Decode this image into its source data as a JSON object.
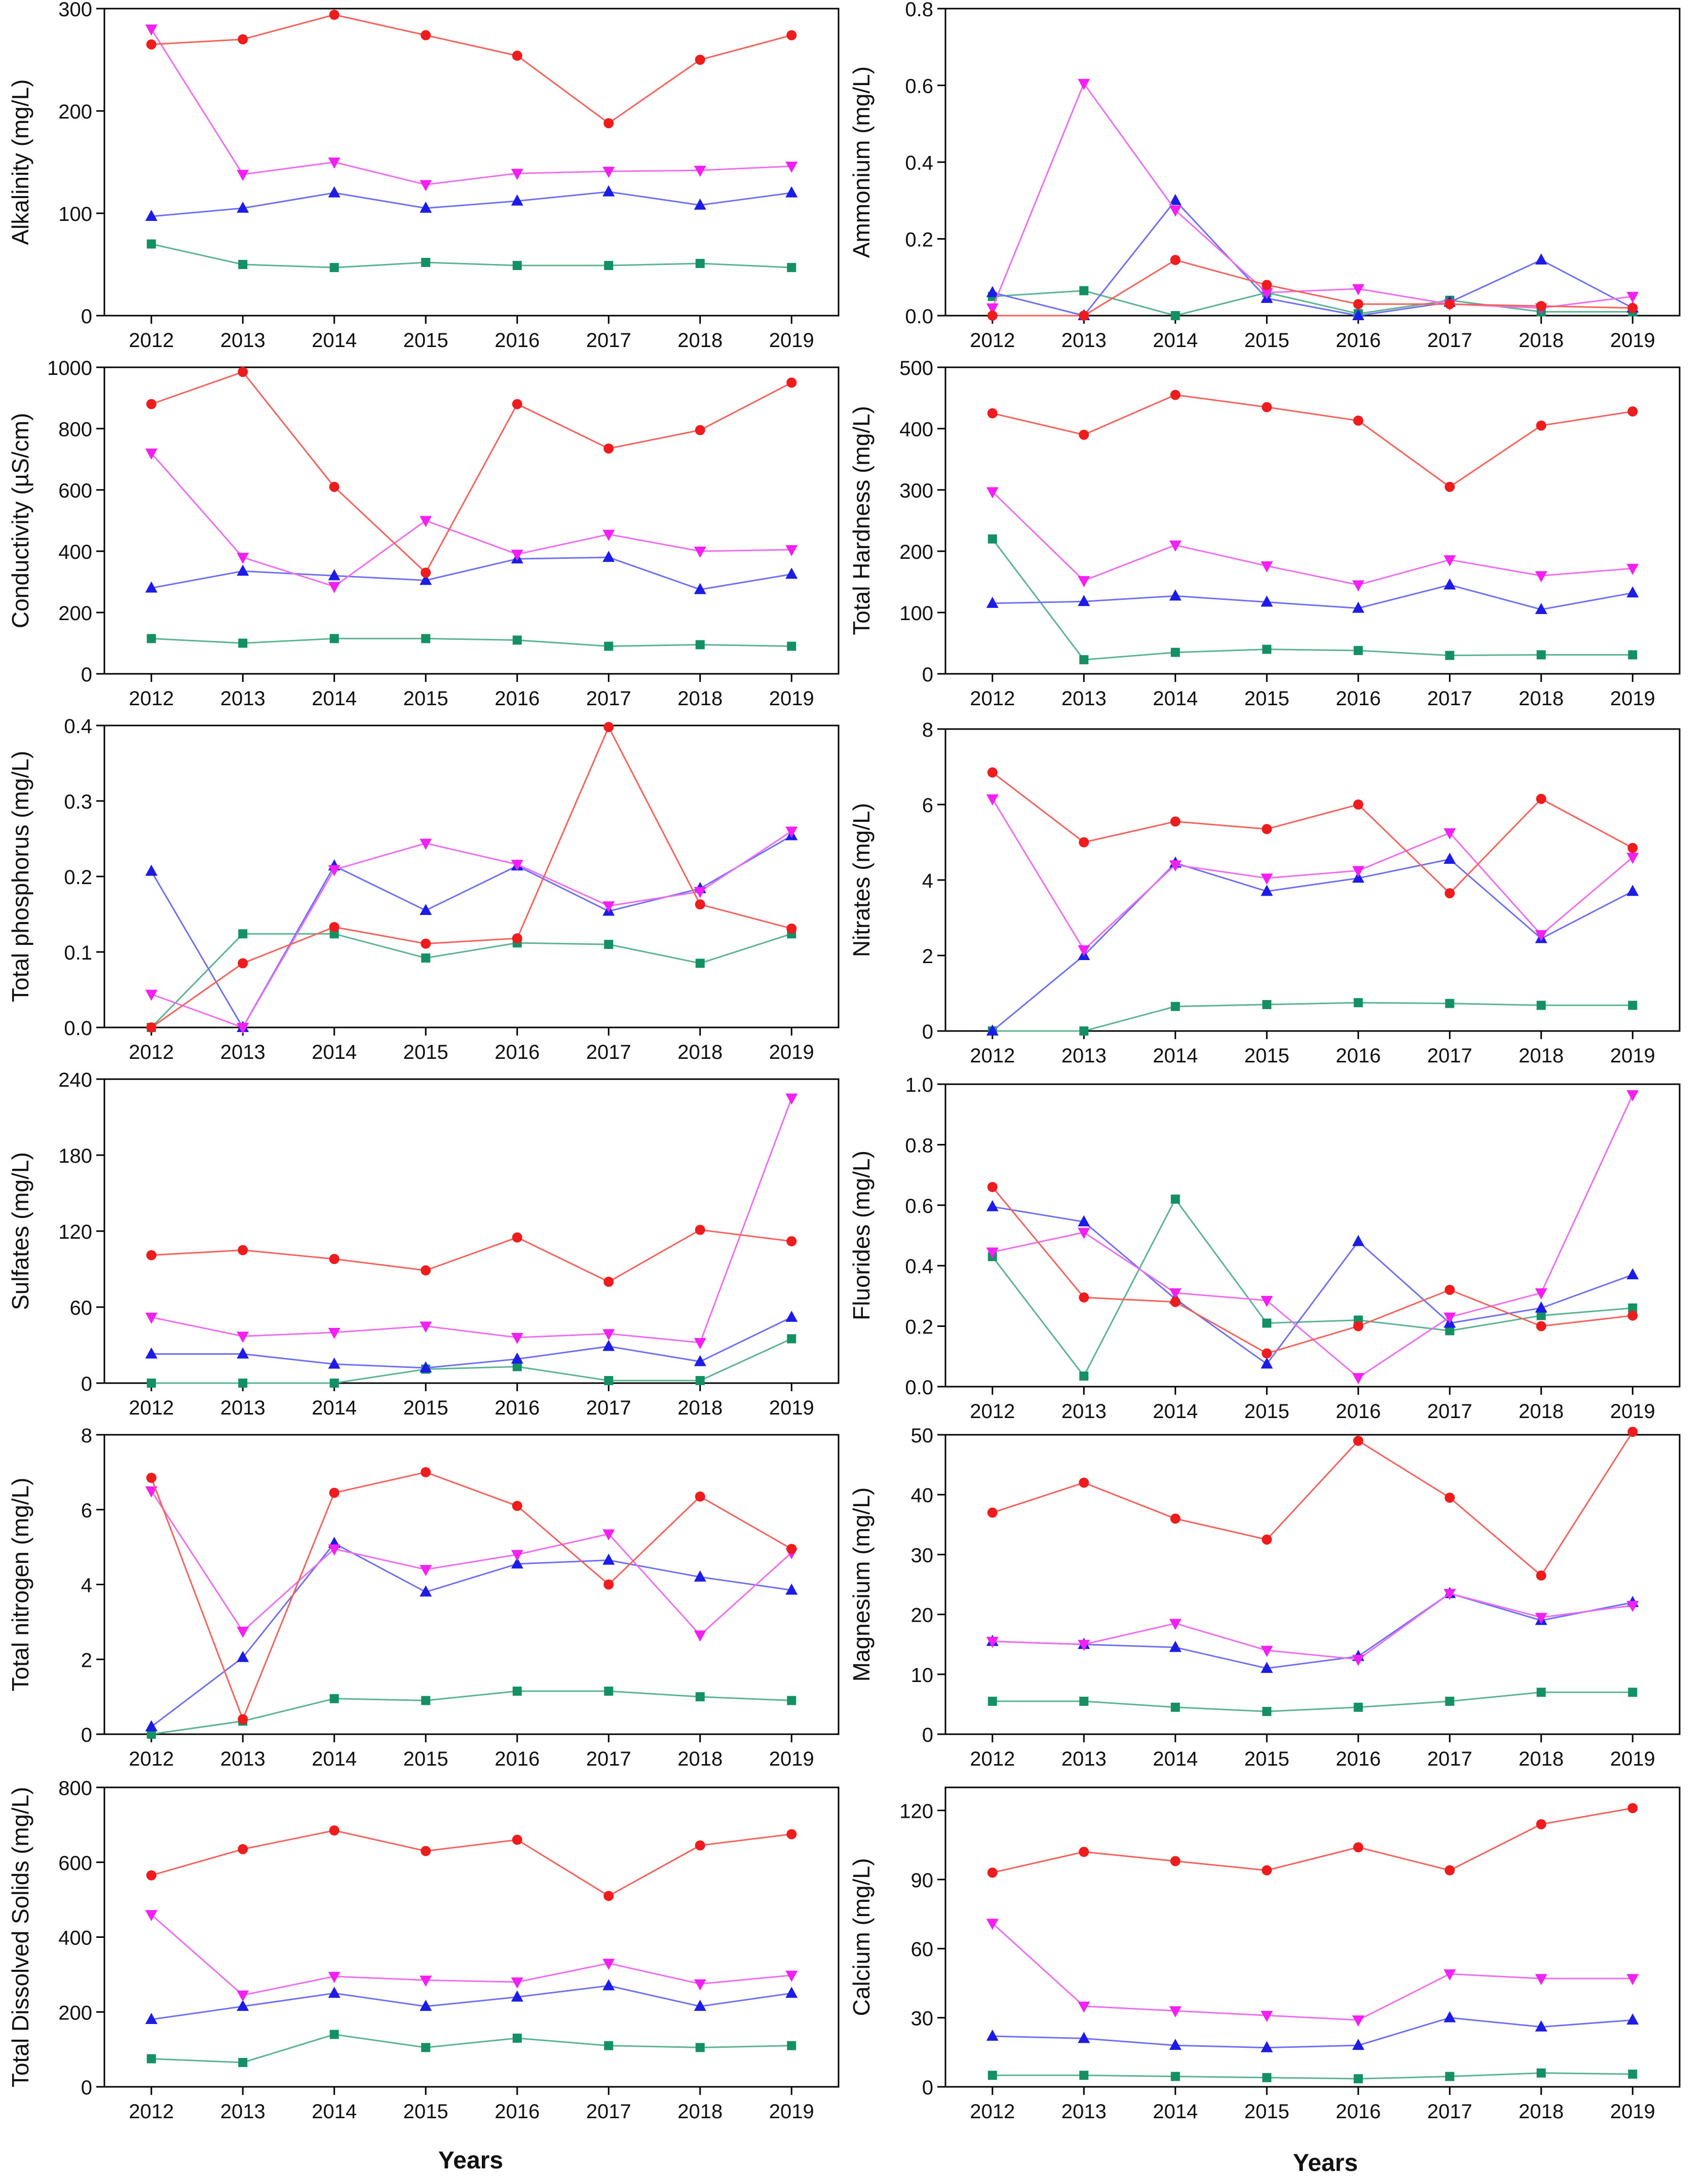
{
  "colors": {
    "red": "#f5625c",
    "redMarker": "#ee1c1c",
    "blue": "#6f6ff5",
    "blueMarker": "#1c1ce6",
    "magenta": "#ee6ef0",
    "magentaMarker": "#f31ff3",
    "teal": "#5bb391",
    "tealMarker": "#139164"
  },
  "x_axis_label": "Years",
  "chart_data": [
    {
      "type": "line",
      "ylabel": "Alkalinity (mg/L)",
      "ylim": [
        0,
        300
      ],
      "yticks": [
        0,
        100,
        200,
        300
      ],
      "categories": [
        "2012",
        "2013",
        "2014",
        "2015",
        "2016",
        "2017",
        "2018",
        "2019"
      ],
      "series": [
        {
          "marker": "circle",
          "color": "red",
          "values": [
            265,
            270,
            294,
            274,
            254,
            188,
            250,
            274
          ]
        },
        {
          "marker": "tri-down",
          "color": "magenta",
          "values": [
            280,
            138,
            150,
            128,
            139,
            141,
            142,
            146
          ]
        },
        {
          "marker": "tri-up",
          "color": "blue",
          "values": [
            97,
            105,
            120,
            105,
            112,
            121,
            108,
            120
          ]
        },
        {
          "marker": "square",
          "color": "teal",
          "values": [
            70,
            50,
            47,
            52,
            49,
            49,
            51,
            47
          ]
        }
      ]
    },
    {
      "type": "line",
      "ylabel": "Ammonium (mg/L)",
      "ylim": [
        0,
        0.8
      ],
      "yticks": [
        "0.0",
        "0.2",
        "0.4",
        "0.6",
        "0.8"
      ],
      "categories": [
        "2012",
        "2013",
        "2014",
        "2015",
        "2016",
        "2017",
        "2018",
        "2019"
      ],
      "series": [
        {
          "marker": "circle",
          "color": "red",
          "values": [
            0.0,
            0.0,
            0.145,
            0.08,
            0.03,
            0.03,
            0.025,
            0.02
          ]
        },
        {
          "marker": "tri-down",
          "color": "magenta",
          "values": [
            0.02,
            0.605,
            0.275,
            0.06,
            0.07,
            0.03,
            0.02,
            0.05
          ]
        },
        {
          "marker": "tri-up",
          "color": "blue",
          "values": [
            0.06,
            0.0,
            0.3,
            0.045,
            0.0,
            0.035,
            0.145,
            0.02
          ]
        },
        {
          "marker": "square",
          "color": "teal",
          "values": [
            0.05,
            0.065,
            0.0,
            0.06,
            0.005,
            0.04,
            0.01,
            0.01
          ]
        }
      ]
    },
    {
      "type": "line",
      "ylabel": "Conductivity (µS/cm)",
      "ylim": [
        0,
        1000
      ],
      "yticks": [
        0,
        200,
        400,
        600,
        800,
        1000
      ],
      "categories": [
        "2012",
        "2013",
        "2014",
        "2015",
        "2016",
        "2017",
        "2018",
        "2019"
      ],
      "series": [
        {
          "marker": "circle",
          "color": "red",
          "values": [
            880,
            985,
            610,
            330,
            880,
            735,
            795,
            950
          ]
        },
        {
          "marker": "tri-down",
          "color": "magenta",
          "values": [
            720,
            380,
            285,
            500,
            390,
            455,
            400,
            405
          ]
        },
        {
          "marker": "tri-up",
          "color": "blue",
          "values": [
            280,
            335,
            320,
            305,
            375,
            380,
            275,
            325
          ]
        },
        {
          "marker": "square",
          "color": "teal",
          "values": [
            115,
            100,
            115,
            115,
            110,
            90,
            95,
            90
          ]
        }
      ]
    },
    {
      "type": "line",
      "ylabel": "Total Hardness (mg/L)",
      "ylim": [
        0,
        500
      ],
      "yticks": [
        0,
        100,
        200,
        300,
        400,
        500
      ],
      "categories": [
        "2012",
        "2013",
        "2014",
        "2015",
        "2016",
        "2017",
        "2018",
        "2019"
      ],
      "series": [
        {
          "marker": "circle",
          "color": "red",
          "values": [
            425,
            390,
            455,
            435,
            413,
            305,
            405,
            428
          ]
        },
        {
          "marker": "tri-down",
          "color": "magenta",
          "values": [
            297,
            152,
            210,
            176,
            145,
            186,
            160,
            172
          ]
        },
        {
          "marker": "tri-up",
          "color": "blue",
          "values": [
            115,
            118,
            127,
            117,
            107,
            145,
            105,
            132
          ]
        },
        {
          "marker": "square",
          "color": "teal",
          "values": [
            220,
            23,
            35,
            40,
            38,
            30,
            31,
            31
          ]
        }
      ]
    },
    {
      "type": "line",
      "ylabel": "Total phosphorus (mg/L)",
      "ylim": [
        0,
        0.4
      ],
      "yticks": [
        "0.0",
        "0.1",
        "0.2",
        "0.3",
        "0.4"
      ],
      "categories": [
        "2012",
        "2013",
        "2014",
        "2015",
        "2016",
        "2017",
        "2018",
        "2019"
      ],
      "series": [
        {
          "marker": "circle",
          "color": "red",
          "values": [
            0.0,
            0.085,
            0.133,
            0.111,
            0.118,
            0.398,
            0.163,
            0.131
          ]
        },
        {
          "marker": "tri-down",
          "color": "magenta",
          "values": [
            0.044,
            0.0,
            0.209,
            0.244,
            0.216,
            0.161,
            0.18,
            0.26
          ]
        },
        {
          "marker": "tri-up",
          "color": "blue",
          "values": [
            0.207,
            0.0,
            0.214,
            0.155,
            0.214,
            0.154,
            0.184,
            0.254
          ]
        },
        {
          "marker": "square",
          "color": "teal",
          "values": [
            0.0,
            0.124,
            0.124,
            0.092,
            0.112,
            0.11,
            0.085,
            0.124
          ]
        }
      ]
    },
    {
      "type": "line",
      "ylabel": "Nitrates (mg/L)",
      "ylim": [
        0,
        8
      ],
      "yticks": [
        0,
        2,
        4,
        6,
        8
      ],
      "categories": [
        "2012",
        "2013",
        "2014",
        "2015",
        "2016",
        "2017",
        "2018",
        "2019"
      ],
      "series": [
        {
          "marker": "circle",
          "color": "red",
          "values": [
            6.85,
            5.0,
            5.55,
            5.35,
            6.0,
            3.65,
            6.15,
            4.85
          ]
        },
        {
          "marker": "tri-down",
          "color": "magenta",
          "values": [
            6.15,
            2.15,
            4.4,
            4.05,
            4.25,
            5.25,
            2.55,
            4.6
          ]
        },
        {
          "marker": "tri-up",
          "color": "blue",
          "values": [
            0.0,
            2.0,
            4.45,
            3.7,
            4.05,
            4.55,
            2.45,
            3.7
          ]
        },
        {
          "marker": "square",
          "color": "teal",
          "values": [
            0.0,
            0.0,
            0.65,
            0.7,
            0.75,
            0.73,
            0.68,
            0.68
          ]
        }
      ]
    },
    {
      "type": "line",
      "ylabel": "Sulfates (mg/L)",
      "ylim": [
        0,
        240
      ],
      "yticks": [
        0,
        60,
        120,
        180,
        240
      ],
      "categories": [
        "2012",
        "2013",
        "2014",
        "2015",
        "2016",
        "2017",
        "2018",
        "2019"
      ],
      "series": [
        {
          "marker": "circle",
          "color": "red",
          "values": [
            101,
            105,
            98,
            89,
            115,
            80,
            121,
            112
          ]
        },
        {
          "marker": "tri-down",
          "color": "magenta",
          "values": [
            52,
            37,
            40,
            45,
            36,
            39,
            32,
            225
          ]
        },
        {
          "marker": "tri-up",
          "color": "blue",
          "values": [
            23,
            23,
            15,
            12,
            19,
            29,
            17,
            52
          ]
        },
        {
          "marker": "square",
          "color": "teal",
          "values": [
            0,
            0,
            0,
            11,
            13,
            2,
            2,
            35
          ]
        }
      ]
    },
    {
      "type": "line",
      "ylabel": "Fluorides (mg/L)",
      "ylim": [
        0,
        1.0
      ],
      "yticks": [
        "0.0",
        "0.2",
        "0.4",
        "0.6",
        "0.8",
        "1.0"
      ],
      "categories": [
        "2012",
        "2013",
        "2014",
        "2015",
        "2016",
        "2017",
        "2018",
        "2019"
      ],
      "series": [
        {
          "marker": "circle",
          "color": "red",
          "values": [
            0.66,
            0.295,
            0.28,
            0.11,
            0.2,
            0.32,
            0.2,
            0.235
          ]
        },
        {
          "marker": "tri-down",
          "color": "magenta",
          "values": [
            0.445,
            0.51,
            0.31,
            0.285,
            0.03,
            0.23,
            0.31,
            0.965
          ]
        },
        {
          "marker": "tri-up",
          "color": "blue",
          "values": [
            0.595,
            0.545,
            0.29,
            0.075,
            0.48,
            0.21,
            0.26,
            0.37
          ]
        },
        {
          "marker": "square",
          "color": "teal",
          "values": [
            0.43,
            0.035,
            0.62,
            0.21,
            0.22,
            0.185,
            0.235,
            0.26
          ]
        }
      ]
    },
    {
      "type": "line",
      "ylabel": "Total nitrogen (mg/L)",
      "ylim": [
        0,
        8
      ],
      "yticks": [
        0,
        2,
        4,
        6,
        8
      ],
      "categories": [
        "2012",
        "2013",
        "2014",
        "2015",
        "2016",
        "2017",
        "2018",
        "2019"
      ],
      "series": [
        {
          "marker": "circle",
          "color": "red",
          "values": [
            6.85,
            0.4,
            6.45,
            7.0,
            6.1,
            4.0,
            6.35,
            4.95
          ]
        },
        {
          "marker": "tri-down",
          "color": "magenta",
          "values": [
            6.5,
            2.75,
            4.95,
            4.4,
            4.8,
            5.35,
            2.65,
            4.85
          ]
        },
        {
          "marker": "tri-up",
          "color": "blue",
          "values": [
            0.2,
            2.05,
            5.1,
            3.8,
            4.55,
            4.65,
            4.2,
            3.85
          ]
        },
        {
          "marker": "square",
          "color": "teal",
          "values": [
            0.0,
            0.35,
            0.95,
            0.9,
            1.15,
            1.15,
            1.0,
            0.9
          ]
        }
      ]
    },
    {
      "type": "line",
      "ylabel": "Magnesium (mg/L)",
      "ylim": [
        0,
        50
      ],
      "yticks": [
        0,
        10,
        20,
        30,
        40,
        50
      ],
      "categories": [
        "2012",
        "2013",
        "2014",
        "2015",
        "2016",
        "2017",
        "2018",
        "2019"
      ],
      "series": [
        {
          "marker": "circle",
          "color": "red",
          "values": [
            37,
            42,
            36,
            32.5,
            49,
            39.5,
            26.5,
            50.5
          ]
        },
        {
          "marker": "tri-down",
          "color": "magenta",
          "values": [
            15.5,
            15,
            18.5,
            14,
            12.5,
            23.5,
            19.5,
            21.5
          ]
        },
        {
          "marker": "tri-up",
          "color": "blue",
          "values": [
            15.5,
            15,
            14.5,
            11,
            13,
            23.5,
            19,
            22
          ]
        },
        {
          "marker": "square",
          "color": "teal",
          "values": [
            5.5,
            5.5,
            4.5,
            3.8,
            4.5,
            5.5,
            7,
            7
          ]
        }
      ]
    },
    {
      "type": "line",
      "ylabel": "Total Dissolved Solids (mg/L)",
      "ylim": [
        0,
        800
      ],
      "yticks": [
        0,
        200,
        400,
        600,
        800
      ],
      "categories": [
        "2012",
        "2013",
        "2014",
        "2015",
        "2016",
        "2017",
        "2018",
        "2019"
      ],
      "series": [
        {
          "marker": "circle",
          "color": "red",
          "values": [
            565,
            635,
            685,
            630,
            660,
            510,
            645,
            675
          ]
        },
        {
          "marker": "tri-down",
          "color": "magenta",
          "values": [
            460,
            245,
            295,
            285,
            280,
            330,
            275,
            298
          ]
        },
        {
          "marker": "tri-up",
          "color": "blue",
          "values": [
            180,
            215,
            250,
            215,
            240,
            270,
            215,
            250
          ]
        },
        {
          "marker": "square",
          "color": "teal",
          "values": [
            75,
            65,
            140,
            105,
            130,
            110,
            105,
            110
          ]
        }
      ]
    },
    {
      "type": "line",
      "ylabel": "Calcium (mg/L)",
      "ylim": [
        0,
        130
      ],
      "yticks": [
        0,
        30,
        60,
        90,
        120
      ],
      "categories": [
        "2012",
        "2013",
        "2014",
        "2015",
        "2016",
        "2017",
        "2018",
        "2019"
      ],
      "series": [
        {
          "marker": "circle",
          "color": "red",
          "values": [
            93,
            102,
            98,
            94,
            104,
            94,
            114,
            121
          ]
        },
        {
          "marker": "tri-down",
          "color": "magenta",
          "values": [
            71,
            35,
            33,
            31,
            29,
            49,
            47,
            47
          ]
        },
        {
          "marker": "tri-up",
          "color": "blue",
          "values": [
            22,
            21,
            18,
            17,
            18,
            30,
            26,
            29
          ]
        },
        {
          "marker": "square",
          "color": "teal",
          "values": [
            5,
            5,
            4.5,
            4,
            3.5,
            4.5,
            6,
            5.5
          ]
        }
      ]
    }
  ]
}
